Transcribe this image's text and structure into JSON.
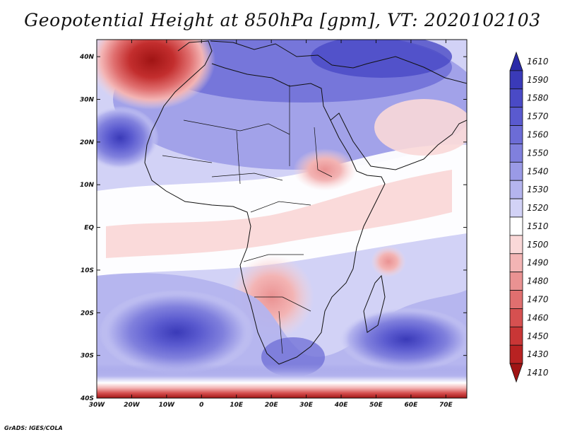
{
  "title": "Geopotential Height at 850hPa [gpm], VT: 2020102103",
  "credit": "GrADS: IGES/COLA",
  "map": {
    "lat_ticks": [
      "40N",
      "30N",
      "20N",
      "10N",
      "EQ",
      "10S",
      "20S",
      "30S",
      "40S"
    ],
    "lon_ticks": [
      "30W",
      "20W",
      "10W",
      "0",
      "10E",
      "20E",
      "30E",
      "40E",
      "50E",
      "60E",
      "70E"
    ],
    "lon_range": [
      -30,
      76
    ],
    "lat_range": [
      -40,
      44
    ]
  },
  "colorbar": {
    "labels": [
      "1610",
      "1590",
      "1580",
      "1570",
      "1560",
      "1550",
      "1540",
      "1530",
      "1520",
      "1510",
      "1500",
      "1490",
      "1480",
      "1470",
      "1460",
      "1450",
      "1430",
      "1410"
    ],
    "colors": [
      "#2a2aa8",
      "#3a3ab8",
      "#4a4ac6",
      "#5a5acf",
      "#6c6cd6",
      "#8080dd",
      "#9a9ae6",
      "#b4b4ee",
      "#d2d2f6",
      "#ffffff",
      "#fad8d8",
      "#f3b4b4",
      "#ea9292",
      "#e06f6f",
      "#d65050",
      "#c93636",
      "#b82222",
      "#a01414"
    ]
  }
}
